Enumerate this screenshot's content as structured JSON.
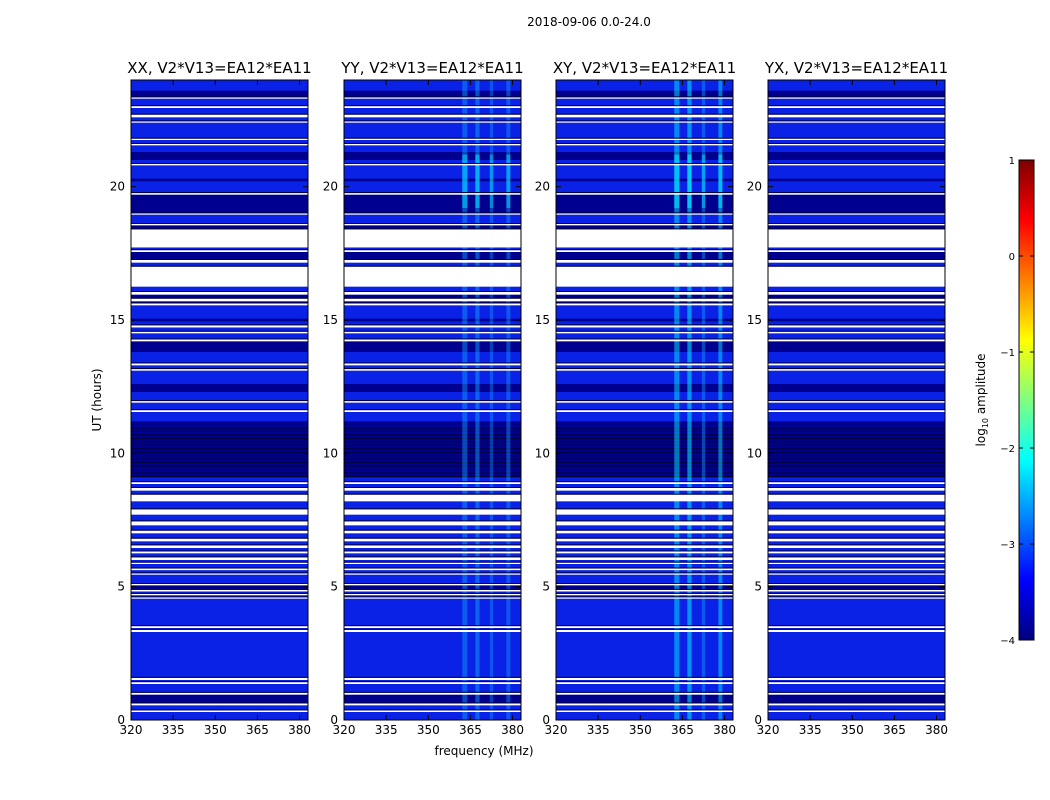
{
  "figure": {
    "suptitle": "2018-09-06 0.0-24.0",
    "xlabel": "frequency (MHz)",
    "ylabel": "UT (hours)",
    "colorbar_label": "log",
    "colorbar_label_sub": "10",
    "colorbar_label_rest": " amplitude"
  },
  "colors": {
    "background_signal": "#0a22e6",
    "dark_band": "#00008f",
    "flagged": "#ffffff",
    "rfi_mid": "#14a0ff",
    "rfi_bright": "#00e6ff"
  },
  "chart_data": [
    {
      "type": "heatmap",
      "title": "XX, V2*V13=EA12*EA11",
      "x_range": [
        320,
        383
      ],
      "y_range": [
        0,
        24
      ],
      "x_ticks": [
        "320",
        "335",
        "350",
        "365",
        "380"
      ],
      "y_ticks": [
        "0",
        "5",
        "10",
        "15",
        "20"
      ],
      "rfi_strength": 0.05
    },
    {
      "type": "heatmap",
      "title": "YY, V2*V13=EA12*EA11",
      "x_range": [
        320,
        383
      ],
      "y_range": [
        0,
        24
      ],
      "x_ticks": [
        "320",
        "335",
        "350",
        "365",
        "380"
      ],
      "y_ticks": [
        "0",
        "5",
        "10",
        "15",
        "20"
      ],
      "rfi_strength": 0.7
    },
    {
      "type": "heatmap",
      "title": "XY, V2*V13=EA12*EA11",
      "x_range": [
        320,
        383
      ],
      "y_range": [
        0,
        24
      ],
      "x_ticks": [
        "320",
        "335",
        "350",
        "365",
        "380"
      ],
      "y_ticks": [
        "0",
        "5",
        "10",
        "15",
        "20"
      ],
      "rfi_strength": 0.95
    },
    {
      "type": "heatmap",
      "title": "YX, V2*V13=EA12*EA11",
      "x_range": [
        320,
        383
      ],
      "y_range": [
        0,
        24
      ],
      "x_ticks": [
        "320",
        "335",
        "350",
        "365",
        "380"
      ],
      "y_ticks": [
        "0",
        "5",
        "10",
        "15",
        "20"
      ],
      "rfi_strength": 0.05
    }
  ],
  "flagged_ut_intervals": [
    [
      0.3,
      0.36
    ],
    [
      0.55,
      0.62
    ],
    [
      0.95,
      1.02
    ],
    [
      1.35,
      1.42
    ],
    [
      1.5,
      1.58
    ],
    [
      3.3,
      3.38
    ],
    [
      3.45,
      3.52
    ],
    [
      4.55,
      4.6
    ],
    [
      4.68,
      4.73
    ],
    [
      4.82,
      4.88
    ],
    [
      5.05,
      5.1
    ],
    [
      5.45,
      5.5
    ],
    [
      5.62,
      5.68
    ],
    [
      5.85,
      5.9
    ],
    [
      6.0,
      6.1
    ],
    [
      6.25,
      6.32
    ],
    [
      6.45,
      6.55
    ],
    [
      6.7,
      6.8
    ],
    [
      7.0,
      7.1
    ],
    [
      7.3,
      7.45
    ],
    [
      7.7,
      7.9
    ],
    [
      8.2,
      8.45
    ],
    [
      8.6,
      8.7
    ],
    [
      8.85,
      8.92
    ],
    [
      11.55,
      11.62
    ],
    [
      11.9,
      11.96
    ],
    [
      13.1,
      13.16
    ],
    [
      13.3,
      13.37
    ],
    [
      14.2,
      14.27
    ],
    [
      14.5,
      14.56
    ],
    [
      14.72,
      14.8
    ],
    [
      15.55,
      15.62
    ],
    [
      15.7,
      15.8
    ],
    [
      15.95,
      16.05
    ],
    [
      16.25,
      17.0
    ],
    [
      17.15,
      17.25
    ],
    [
      17.55,
      17.62
    ],
    [
      17.72,
      18.4
    ],
    [
      18.55,
      18.6
    ],
    [
      18.95,
      19.0
    ],
    [
      19.7,
      19.76
    ],
    [
      20.8,
      20.85
    ],
    [
      21.55,
      21.6
    ],
    [
      21.75,
      21.8
    ],
    [
      22.4,
      22.45
    ],
    [
      22.6,
      22.7
    ],
    [
      22.95,
      23.02
    ],
    [
      23.3,
      23.35
    ]
  ],
  "dark_ut_intervals": [
    [
      0.62,
      0.95
    ],
    [
      4.9,
      5.05
    ],
    [
      9.1,
      11.0
    ],
    [
      11.0,
      11.2
    ],
    [
      12.3,
      12.6
    ],
    [
      13.8,
      14.2
    ],
    [
      14.95,
      15.05
    ],
    [
      15.62,
      15.95
    ],
    [
      17.25,
      17.55
    ],
    [
      18.4,
      18.55
    ],
    [
      19.0,
      19.7
    ],
    [
      20.2,
      20.3
    ],
    [
      21.0,
      21.3
    ],
    [
      23.35,
      23.6
    ]
  ],
  "rfi_channels_mhz": [
    {
      "center": 363,
      "width": 1.8,
      "level": 0.8
    },
    {
      "center": 367.5,
      "width": 1.5,
      "level": 1.0
    },
    {
      "center": 372.5,
      "width": 1.2,
      "level": 0.55
    },
    {
      "center": 378.5,
      "width": 1.4,
      "level": 0.75
    }
  ],
  "colorbar": {
    "min": -4,
    "max": 1,
    "ticks": [
      "1",
      "0",
      "−1",
      "−2",
      "−3",
      "−4"
    ],
    "stops": [
      "#00007f",
      "#0000ff",
      "#007fff",
      "#00ffff",
      "#7fff7f",
      "#ffff00",
      "#ff7f00",
      "#ff0000",
      "#7f0000"
    ]
  }
}
